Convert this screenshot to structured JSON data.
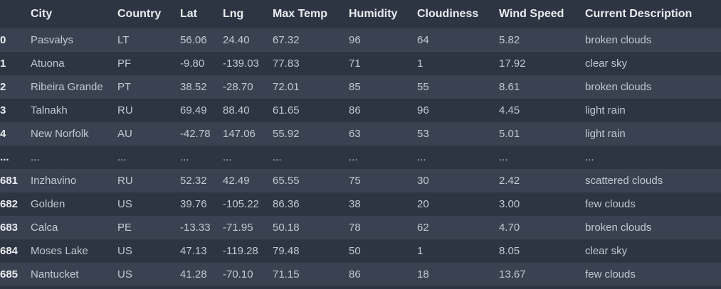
{
  "table": {
    "columns": [
      "",
      "City",
      "Country",
      "Lat",
      "Lng",
      "Max Temp",
      "Humidity",
      "Cloudiness",
      "Wind Speed",
      "Current Description"
    ],
    "rows": [
      [
        "0",
        "Pasvalys",
        "LT",
        "56.06",
        "24.40",
        "67.32",
        "96",
        "64",
        "5.82",
        "broken clouds"
      ],
      [
        "1",
        "Atuona",
        "PF",
        "-9.80",
        "-139.03",
        "77.83",
        "71",
        "1",
        "17.92",
        "clear sky"
      ],
      [
        "2",
        "Ribeira Grande",
        "PT",
        "38.52",
        "-28.70",
        "72.01",
        "85",
        "55",
        "8.61",
        "broken clouds"
      ],
      [
        "3",
        "Talnakh",
        "RU",
        "69.49",
        "88.40",
        "61.65",
        "86",
        "96",
        "4.45",
        "light rain"
      ],
      [
        "4",
        "New Norfolk",
        "AU",
        "-42.78",
        "147.06",
        "55.92",
        "63",
        "53",
        "5.01",
        "light rain"
      ],
      [
        "...",
        "...",
        "...",
        "...",
        "...",
        "...",
        "...",
        "...",
        "...",
        "..."
      ],
      [
        "681",
        "Inzhavino",
        "RU",
        "52.32",
        "42.49",
        "65.55",
        "75",
        "30",
        "2.42",
        "scattered clouds"
      ],
      [
        "682",
        "Golden",
        "US",
        "39.76",
        "-105.22",
        "86.36",
        "38",
        "20",
        "3.00",
        "few clouds"
      ],
      [
        "683",
        "Calca",
        "PE",
        "-13.33",
        "-71.95",
        "50.18",
        "78",
        "62",
        "4.70",
        "broken clouds"
      ],
      [
        "684",
        "Moses Lake",
        "US",
        "47.13",
        "-119.28",
        "79.48",
        "50",
        "1",
        "8.05",
        "clear sky"
      ],
      [
        "685",
        "Nantucket",
        "US",
        "41.28",
        "-70.10",
        "71.15",
        "86",
        "18",
        "13.67",
        "few clouds"
      ]
    ]
  },
  "colors": {
    "background": "#2e3542",
    "row_stripe": "#3a4252",
    "header_text": "#e8ebef",
    "cell_text": "#c2c8d1"
  }
}
